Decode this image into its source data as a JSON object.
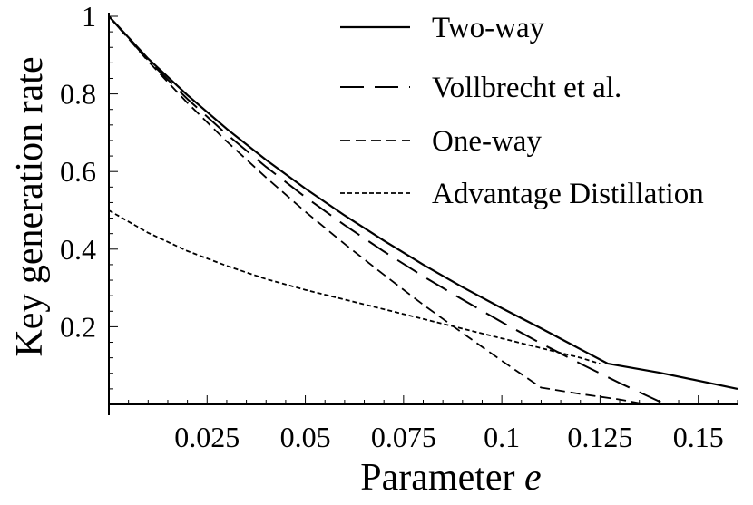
{
  "chart_data": {
    "type": "line",
    "xlabel": "Parameter",
    "xlabel_var": "e",
    "ylabel": "Key generation rate",
    "xlim": [
      0,
      0.16
    ],
    "ylim": [
      0,
      1
    ],
    "grid": false,
    "legend_position": "top-right",
    "x_ticks": [
      {
        "value": 0.025,
        "label": "0.025"
      },
      {
        "value": 0.05,
        "label": "0.05"
      },
      {
        "value": 0.075,
        "label": "0.075"
      },
      {
        "value": 0.1,
        "label": "0.1"
      },
      {
        "value": 0.125,
        "label": "0.125"
      },
      {
        "value": 0.15,
        "label": "0.15"
      }
    ],
    "y_ticks": [
      {
        "value": 0.2,
        "label": "0.2"
      },
      {
        "value": 0.4,
        "label": "0.4"
      },
      {
        "value": 0.6,
        "label": "0.6"
      },
      {
        "value": 0.8,
        "label": "0.8"
      },
      {
        "value": 1,
        "label": "1"
      }
    ],
    "series": [
      {
        "name": "Two-way",
        "style": "solid",
        "color": "#000000",
        "x": [
          0,
          0.01,
          0.02,
          0.03,
          0.04,
          0.05,
          0.06,
          0.07,
          0.08,
          0.09,
          0.1,
          0.11,
          0.12,
          0.127,
          0.14,
          0.16
        ],
        "y": [
          1.0,
          0.891,
          0.797,
          0.71,
          0.63,
          0.556,
          0.487,
          0.422,
          0.36,
          0.302,
          0.248,
          0.196,
          0.142,
          0.105,
          0.082,
          0.04
        ]
      },
      {
        "name": "Vollbrecht et al.",
        "style": "long-dash",
        "color": "#000000",
        "x": [
          0,
          0.01,
          0.02,
          0.03,
          0.04,
          0.05,
          0.06,
          0.07,
          0.08,
          0.09,
          0.1,
          0.11,
          0.12,
          0.13,
          0.14,
          0.142
        ],
        "y": [
          1.0,
          0.887,
          0.787,
          0.696,
          0.612,
          0.534,
          0.462,
          0.394,
          0.33,
          0.27,
          0.212,
          0.157,
          0.105,
          0.055,
          0.008,
          0.0
        ]
      },
      {
        "name": "One-way",
        "style": "short-dash",
        "color": "#000000",
        "x": [
          0,
          0.01,
          0.02,
          0.03,
          0.04,
          0.05,
          0.06,
          0.07,
          0.08,
          0.09,
          0.1,
          0.11,
          0.12,
          0.13,
          0.1367
        ],
        "y": [
          1.0,
          0.8843,
          0.7769,
          0.6775,
          0.5845,
          0.4965,
          0.4133,
          0.3338,
          0.2568,
          0.1838,
          0.1125,
          0.0433,
          0.0268,
          0.0125,
          0.0
        ]
      },
      {
        "name": "Advantage Distillation",
        "style": "dotted",
        "color": "#000000",
        "x": [
          0,
          0.01,
          0.02,
          0.03,
          0.04,
          0.05,
          0.06,
          0.07,
          0.08,
          0.09,
          0.1,
          0.11,
          0.12,
          0.125
        ],
        "y": [
          0.5,
          0.442,
          0.395,
          0.357,
          0.323,
          0.295,
          0.27,
          0.245,
          0.22,
          0.195,
          0.17,
          0.145,
          0.12,
          0.105
        ]
      }
    ]
  }
}
